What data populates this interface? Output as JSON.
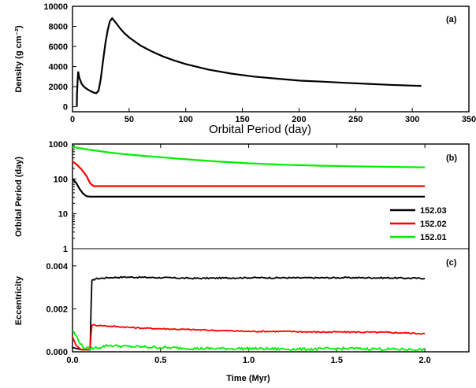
{
  "colors": {
    "s152_03": "#000000",
    "s152_02": "#ff0000",
    "s152_01": "#00ee00"
  },
  "chart_data": [
    {
      "panel": "(a)",
      "type": "line",
      "xlabel": "Orbital Period (day)",
      "ylabel": "Density (g cm⁻²)",
      "xlim": [
        0,
        350
      ],
      "ylim": [
        -500,
        10000
      ],
      "x_ticks": [
        0,
        50,
        100,
        150,
        200,
        250,
        300,
        350
      ],
      "y_ticks": [
        0,
        2000,
        4000,
        6000,
        8000,
        10000
      ],
      "grid": false,
      "series": [
        {
          "x": [
            3.8,
            4.0,
            4.5,
            5.0,
            6.0,
            8.0,
            10,
            13,
            16,
            19,
            21,
            23,
            25,
            27,
            29,
            31,
            33,
            35,
            38,
            42,
            46,
            50,
            60,
            70,
            80,
            90,
            100,
            120,
            140,
            160,
            180,
            200,
            220,
            240,
            260,
            280,
            300,
            308
          ],
          "y": [
            0,
            1200,
            2600,
            3500,
            2900,
            2300,
            2000,
            1750,
            1550,
            1400,
            1350,
            1600,
            2800,
            4600,
            6300,
            7600,
            8500,
            8800,
            8400,
            7800,
            7300,
            6900,
            6100,
            5500,
            5000,
            4600,
            4250,
            3700,
            3300,
            3000,
            2800,
            2600,
            2500,
            2380,
            2280,
            2180,
            2100,
            2080
          ]
        }
      ]
    },
    {
      "panel": "(b)",
      "type": "line",
      "xlabel": "",
      "ylabel": "Orbital Period (day)",
      "y_scale": "log",
      "xlim": [
        0,
        2.25
      ],
      "ylim": [
        1,
        1000
      ],
      "y_ticks": [
        1,
        10,
        100,
        1000
      ],
      "legend_position": "bottom-right",
      "grid": false,
      "series": [
        {
          "name": "152.03",
          "x": [
            0,
            0.02,
            0.04,
            0.06,
            0.08,
            0.1,
            0.2,
            0.5,
            1.0,
            1.5,
            2.0
          ],
          "y": [
            100,
            78,
            52,
            38,
            32,
            31,
            31,
            31,
            31,
            31,
            31
          ]
        },
        {
          "name": "152.02",
          "x": [
            0,
            0.02,
            0.05,
            0.08,
            0.1,
            0.12,
            0.2,
            0.5,
            1.0,
            1.5,
            2.0
          ],
          "y": [
            310,
            270,
            190,
            120,
            75,
            62,
            62,
            62,
            62,
            62,
            62
          ]
        },
        {
          "name": "152.01",
          "x": [
            0,
            0.05,
            0.1,
            0.2,
            0.3,
            0.4,
            0.5,
            0.6,
            0.8,
            1.0,
            1.2,
            1.4,
            1.6,
            1.8,
            2.0
          ],
          "y": [
            820,
            750,
            680,
            580,
            510,
            460,
            420,
            380,
            320,
            280,
            255,
            240,
            230,
            222,
            215
          ]
        }
      ]
    },
    {
      "panel": "(c)",
      "type": "line",
      "xlabel": "Time (Myr)",
      "ylabel": "Eccentricity",
      "xlim": [
        0,
        2.25
      ],
      "ylim": [
        0,
        0.0048
      ],
      "x_ticks": [
        0.0,
        0.5,
        1.0,
        1.5,
        2.0
      ],
      "y_ticks": [
        0.0,
        0.002,
        0.004
      ],
      "grid": false,
      "series": [
        {
          "name": "152.03",
          "x": [
            0,
            0.05,
            0.1,
            0.105,
            0.11,
            0.13,
            0.2,
            0.3,
            0.5,
            0.7,
            1.0,
            1.3,
            1.6,
            1.8,
            2.0
          ],
          "y": [
            0.0002,
            0.0001,
            0.0001,
            0.002,
            0.0033,
            0.0034,
            0.00345,
            0.00348,
            0.00345,
            0.00342,
            0.00345,
            0.00344,
            0.00345,
            0.00344,
            0.00342
          ]
        },
        {
          "name": "152.02",
          "x": [
            0,
            0.02,
            0.05,
            0.1,
            0.105,
            0.11,
            0.2,
            0.4,
            0.6,
            0.8,
            1.0,
            1.2,
            1.4,
            1.6,
            1.8,
            2.0
          ],
          "y": [
            0.0007,
            0.0003,
            0.0001,
            0.0001,
            0.0008,
            0.00125,
            0.0012,
            0.0011,
            0.00105,
            0.001,
            0.00095,
            0.00095,
            0.00092,
            0.00092,
            0.0009,
            0.00085
          ]
        },
        {
          "name": "152.01",
          "x": [
            0,
            0.03,
            0.06,
            0.1,
            0.15,
            0.2,
            0.3,
            0.5,
            0.7,
            1.0,
            1.3,
            1.6,
            1.8,
            2.0
          ],
          "y": [
            0.001,
            0.0006,
            0.0002,
            0.00015,
            0.0002,
            0.0003,
            0.00025,
            0.0002,
            0.00015,
            0.00015,
            0.00012,
            0.00015,
            0.00012,
            0.0001
          ]
        }
      ]
    }
  ]
}
